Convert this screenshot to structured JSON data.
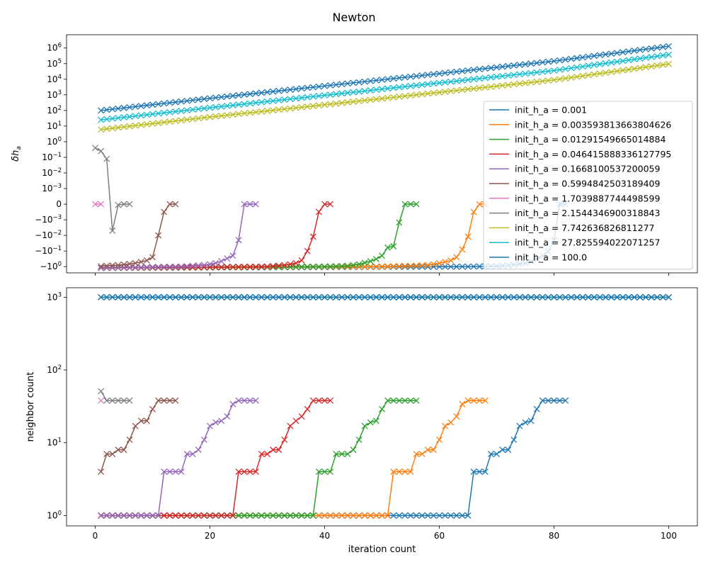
{
  "figure": {
    "suptitle": "Newton"
  },
  "colors": [
    "#1f77b4",
    "#ff7f0e",
    "#2ca02c",
    "#d62728",
    "#9467bd",
    "#8c564b",
    "#e377c2",
    "#7f7f7f",
    "#bcbd22",
    "#17becf",
    "#1f77b4"
  ],
  "chart_data": [
    {
      "type": "line",
      "title": "",
      "xlabel": "",
      "ylabel": "δh_a",
      "yscale": "symlog",
      "linthresh": 0.001,
      "xlim": [
        -5,
        105
      ],
      "grid": false,
      "legend": "right",
      "markers": "x",
      "xticks": [
        0,
        20,
        40,
        60,
        80,
        100
      ],
      "yticks": [
        {
          "value": 1000000,
          "base": "10",
          "exp": "6"
        },
        {
          "value": 100000,
          "base": "10",
          "exp": "5"
        },
        {
          "value": 10000,
          "base": "10",
          "exp": "4"
        },
        {
          "value": 1000,
          "base": "10",
          "exp": "3"
        },
        {
          "value": 100,
          "base": "10",
          "exp": "2"
        },
        {
          "value": 10,
          "base": "10",
          "exp": "1"
        },
        {
          "value": 1,
          "base": "10",
          "exp": "0"
        },
        {
          "value": 0.1,
          "base": "10",
          "exp": "−1"
        },
        {
          "value": 0.01,
          "base": "10",
          "exp": "−2"
        },
        {
          "value": 0.001,
          "base": "10",
          "exp": "−3"
        },
        {
          "value": 0,
          "base": "0",
          "exp": ""
        },
        {
          "value": -0.001,
          "base": "−10",
          "exp": "−3"
        },
        {
          "value": -0.01,
          "base": "−10",
          "exp": "−2"
        },
        {
          "value": -0.1,
          "base": "−10",
          "exp": "−1"
        },
        {
          "value": -1,
          "base": "−10",
          "exp": "0"
        }
      ],
      "legend_entries": [
        "init_h_a = 0.001",
        "init_h_a = 0.003593813663804626",
        "init_h_a = 0.01291549665014884",
        "init_h_a = 0.046415888336127795",
        "init_h_a = 0.1668100537200059",
        "init_h_a = 0.5994842503189409",
        "init_h_a = 1.7039887744498599",
        "init_h_a = 2.1544346900318843",
        "init_h_a = 7.742636826811277",
        "init_h_a = 27.825594022071257",
        "init_h_a = 100.0"
      ],
      "series": [
        {
          "name": "init_h_a = 0.001",
          "x": [
            1,
            65,
            70,
            75,
            78,
            80,
            81,
            82
          ],
          "y": [
            -1.2,
            -1.0,
            -0.95,
            -0.6,
            -0.2,
            -0.02,
            0,
            0
          ]
        },
        {
          "name": "init_h_a = 0.003593813663804626",
          "x": [
            1,
            50,
            55,
            58,
            60,
            62,
            63,
            64,
            65,
            66,
            67,
            68
          ],
          "y": [
            -1.2,
            -1.0,
            -0.9,
            -0.8,
            -0.6,
            -0.4,
            -0.25,
            -0.08,
            -0.012,
            -0.0005,
            0,
            0
          ]
        },
        {
          "name": "init_h_a = 0.01291549665014884",
          "x": [
            1,
            40,
            44,
            46,
            48,
            50,
            51,
            52,
            53,
            54,
            55,
            56
          ],
          "y": [
            -1.2,
            -1.0,
            -0.9,
            -0.7,
            -0.45,
            -0.2,
            -0.06,
            -0.05,
            -0.0015,
            0,
            0,
            0
          ]
        },
        {
          "name": "init_h_a = 0.046415888336127795",
          "x": [
            1,
            30,
            33,
            35,
            36,
            37,
            38,
            39,
            40,
            41
          ],
          "y": [
            -1.2,
            -1.0,
            -0.8,
            -0.6,
            -0.4,
            -0.1,
            -0.012,
            -0.0005,
            0,
            0
          ]
        },
        {
          "name": "init_h_a = 0.1668100537200059",
          "x": [
            1,
            15,
            19,
            21,
            22,
            23,
            24,
            25,
            26,
            27,
            28
          ],
          "y": [
            -1.2,
            -1.0,
            -0.8,
            -0.6,
            -0.45,
            -0.3,
            -0.2,
            -0.02,
            0,
            0,
            0
          ]
        },
        {
          "name": "init_h_a = 0.5994842503189409",
          "x": [
            1,
            4,
            7,
            9,
            10,
            11,
            12,
            13,
            14
          ],
          "y": [
            -0.95,
            -0.8,
            -0.6,
            -0.4,
            -0.25,
            -0.01,
            -0.0005,
            0,
            0
          ]
        },
        {
          "name": "init_h_a = 1.7039887744498599",
          "x": [
            0,
            1
          ],
          "y": [
            0,
            0
          ]
        },
        {
          "name": "init_h_a = 2.1544346900318843",
          "x": [
            0,
            1,
            2,
            3,
            4,
            5,
            6
          ],
          "y": [
            0.4,
            0.25,
            0.08,
            -0.005,
            -5e-05,
            0,
            0
          ]
        },
        {
          "name": "init_h_a = 7.742636826811277",
          "x": [
            1,
            20,
            40,
            60,
            80,
            100
          ],
          "y": [
            6,
            38,
            230,
            1450,
            9000,
            95000
          ]
        },
        {
          "name": "init_h_a = 27.825594022071257",
          "x": [
            1,
            20,
            40,
            60,
            80,
            100
          ],
          "y": [
            25,
            150,
            930,
            5800,
            36000,
            380000
          ]
        },
        {
          "name": "init_h_a = 100.0",
          "x": [
            1,
            20,
            40,
            60,
            80,
            100
          ],
          "y": [
            100,
            600,
            3700,
            23000,
            145000,
            1300000
          ]
        }
      ]
    },
    {
      "type": "line",
      "title": "",
      "xlabel": "iteration count",
      "ylabel": "neighbor count",
      "yscale": "log",
      "xlim": [
        -5,
        105
      ],
      "ylim": [
        0.72,
        1350
      ],
      "grid": false,
      "markers": "x",
      "xticks": [
        0,
        20,
        40,
        60,
        80,
        100
      ],
      "yticks": [
        {
          "value": 1,
          "base": "10",
          "exp": "0"
        },
        {
          "value": 10,
          "base": "10",
          "exp": "1"
        },
        {
          "value": 100,
          "base": "10",
          "exp": "2"
        },
        {
          "value": 1000,
          "base": "10",
          "exp": "3"
        }
      ],
      "series": [
        {
          "name": "init_h_a = 0.001",
          "x": [
            1,
            65,
            66,
            67,
            68,
            69,
            70,
            71,
            72,
            73,
            74,
            75,
            76,
            77,
            78,
            79,
            80,
            81,
            82
          ],
          "y": [
            1,
            1,
            4,
            4,
            4,
            7,
            7,
            8,
            8,
            11,
            17,
            19,
            20,
            29,
            38,
            38,
            38,
            38,
            38
          ]
        },
        {
          "name": "init_h_a = 0.003593813663804626",
          "x": [
            1,
            51,
            52,
            53,
            54,
            55,
            56,
            57,
            58,
            59,
            60,
            61,
            62,
            63,
            64,
            65,
            66,
            67,
            68
          ],
          "y": [
            1,
            1,
            4,
            4,
            4,
            4,
            7,
            7,
            8,
            8,
            11,
            17,
            19,
            23,
            34,
            38,
            38,
            38,
            38
          ]
        },
        {
          "name": "init_h_a = 0.01291549665014884",
          "x": [
            1,
            38,
            39,
            40,
            41,
            42,
            43,
            44,
            45,
            46,
            47,
            48,
            49,
            50,
            51,
            52,
            53,
            54,
            55,
            56
          ],
          "y": [
            1,
            1,
            4,
            4,
            4,
            7,
            7,
            7,
            8,
            11,
            17,
            19,
            20,
            29,
            38,
            38,
            38,
            38,
            38,
            38
          ]
        },
        {
          "name": "init_h_a = 0.046415888336127795",
          "x": [
            1,
            24,
            25,
            26,
            27,
            28,
            29,
            30,
            31,
            32,
            33,
            34,
            35,
            36,
            37,
            38,
            39,
            40,
            41
          ],
          "y": [
            1,
            1,
            4,
            4,
            4,
            4,
            7,
            7,
            8,
            8,
            11,
            17,
            20,
            23,
            29,
            38,
            38,
            38,
            38
          ]
        },
        {
          "name": "init_h_a = 0.1668100537200059",
          "x": [
            1,
            11,
            12,
            13,
            14,
            15,
            16,
            17,
            18,
            19,
            20,
            21,
            22,
            23,
            24,
            25,
            26,
            27,
            28
          ],
          "y": [
            1,
            1,
            4,
            4,
            4,
            4,
            7,
            7,
            8,
            11,
            17,
            19,
            20,
            23,
            34,
            38,
            38,
            38,
            38
          ]
        },
        {
          "name": "init_h_a = 0.5994842503189409",
          "x": [
            1,
            2,
            3,
            4,
            5,
            6,
            7,
            8,
            9,
            10,
            11,
            12,
            13,
            14
          ],
          "y": [
            4,
            7,
            7,
            8,
            8,
            11,
            17,
            20,
            20,
            29,
            38,
            38,
            38,
            38
          ]
        },
        {
          "name": "init_h_a = 1.7039887744498599",
          "x": [
            1
          ],
          "y": [
            38
          ]
        },
        {
          "name": "init_h_a = 2.1544346900318843",
          "x": [
            1,
            2,
            3,
            4,
            5,
            6
          ],
          "y": [
            51,
            38,
            38,
            38,
            38,
            38
          ]
        },
        {
          "name": "init_h_a = 7.742636826811277",
          "x": [
            1,
            100
          ],
          "y": [
            1000,
            1000
          ]
        },
        {
          "name": "init_h_a = 27.825594022071257",
          "x": [
            1,
            100
          ],
          "y": [
            1000,
            1000
          ]
        },
        {
          "name": "init_h_a = 100.0",
          "x": [
            1,
            100
          ],
          "y": [
            1000,
            1000
          ]
        }
      ]
    }
  ]
}
